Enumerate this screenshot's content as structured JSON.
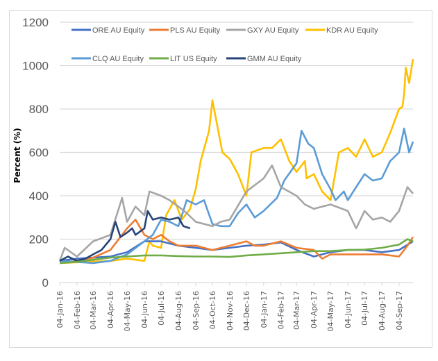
{
  "chart_data": {
    "type": "line",
    "title": "",
    "xlabel": "",
    "ylabel": "Percent (%)",
    "ylim": [
      0,
      1200
    ],
    "yticks": [
      0,
      200,
      400,
      600,
      800,
      1000,
      1200
    ],
    "xlim": [
      "2016-01-04",
      "2017-09-29"
    ],
    "xtick_labels": [
      "04-Jan-16",
      "04-Feb-16",
      "04-Mar-16",
      "04-Apr-16",
      "04-May-16",
      "04-Jun-16",
      "04-Jul-16",
      "04-Aug-16",
      "04-Sep-16",
      "04-Oct-16",
      "04-Nov-16",
      "04-Dec-16",
      "04-Jan-17",
      "04-Feb-17",
      "04-Mar-17",
      "04-Apr-17",
      "04-May-17",
      "04-Jun-17",
      "04-Jul-17",
      "04-Aug-17",
      "04-Sep-17"
    ],
    "xtick_dates": [
      "2016-01-04",
      "2016-02-04",
      "2016-03-04",
      "2016-04-04",
      "2016-05-04",
      "2016-06-04",
      "2016-07-04",
      "2016-08-04",
      "2016-09-04",
      "2016-10-04",
      "2016-11-04",
      "2016-12-04",
      "2017-01-04",
      "2017-02-04",
      "2017-03-04",
      "2017-04-04",
      "2017-05-04",
      "2017-06-04",
      "2017-07-04",
      "2017-08-04",
      "2017-09-04"
    ],
    "grid": "horizontal",
    "legend": "top",
    "series": [
      {
        "name": "ORE AU Equity",
        "color": "#4472C4",
        "points": [
          [
            "2016-01-04",
            100
          ],
          [
            "2016-02-04",
            110
          ],
          [
            "2016-03-04",
            115
          ],
          [
            "2016-04-04",
            120
          ],
          [
            "2016-05-04",
            140
          ],
          [
            "2016-06-04",
            190
          ],
          [
            "2016-07-04",
            190
          ],
          [
            "2016-08-04",
            170
          ],
          [
            "2016-09-04",
            160
          ],
          [
            "2016-10-04",
            150
          ],
          [
            "2016-11-04",
            160
          ],
          [
            "2016-12-04",
            170
          ],
          [
            "2017-01-04",
            175
          ],
          [
            "2017-02-04",
            185
          ],
          [
            "2017-03-04",
            150
          ],
          [
            "2017-04-04",
            120
          ],
          [
            "2017-05-04",
            140
          ],
          [
            "2017-06-04",
            150
          ],
          [
            "2017-07-04",
            150
          ],
          [
            "2017-08-04",
            140
          ],
          [
            "2017-09-04",
            150
          ],
          [
            "2017-09-29",
            190
          ]
        ]
      },
      {
        "name": "PLS AU Equity",
        "color": "#ED7D31",
        "points": [
          [
            "2016-01-04",
            90
          ],
          [
            "2016-02-04",
            100
          ],
          [
            "2016-03-04",
            115
          ],
          [
            "2016-04-04",
            150
          ],
          [
            "2016-05-04",
            250
          ],
          [
            "2016-05-19",
            290
          ],
          [
            "2016-06-04",
            220
          ],
          [
            "2016-06-19",
            200
          ],
          [
            "2016-07-04",
            220
          ],
          [
            "2016-07-19",
            190
          ],
          [
            "2016-08-04",
            170
          ],
          [
            "2016-09-04",
            170
          ],
          [
            "2016-10-04",
            150
          ],
          [
            "2016-11-04",
            170
          ],
          [
            "2016-12-04",
            190
          ],
          [
            "2016-12-19",
            170
          ],
          [
            "2017-01-04",
            170
          ],
          [
            "2017-02-04",
            190
          ],
          [
            "2017-03-04",
            160
          ],
          [
            "2017-04-04",
            150
          ],
          [
            "2017-04-19",
            110
          ],
          [
            "2017-05-04",
            130
          ],
          [
            "2017-06-04",
            130
          ],
          [
            "2017-07-04",
            130
          ],
          [
            "2017-08-04",
            130
          ],
          [
            "2017-09-04",
            120
          ],
          [
            "2017-09-19",
            170
          ],
          [
            "2017-09-29",
            210
          ]
        ]
      },
      {
        "name": "GXY AU Equity",
        "color": "#A5A5A5",
        "points": [
          [
            "2016-01-04",
            100
          ],
          [
            "2016-01-13",
            160
          ],
          [
            "2016-02-04",
            120
          ],
          [
            "2016-03-04",
            190
          ],
          [
            "2016-04-04",
            220
          ],
          [
            "2016-04-25",
            390
          ],
          [
            "2016-05-04",
            280
          ],
          [
            "2016-05-19",
            350
          ],
          [
            "2016-06-04",
            310
          ],
          [
            "2016-06-13",
            420
          ],
          [
            "2016-07-04",
            400
          ],
          [
            "2016-07-19",
            380
          ],
          [
            "2016-08-04",
            350
          ],
          [
            "2016-08-19",
            320
          ],
          [
            "2016-09-04",
            280
          ],
          [
            "2016-10-04",
            260
          ],
          [
            "2016-10-19",
            280
          ],
          [
            "2016-11-04",
            290
          ],
          [
            "2016-12-04",
            420
          ],
          [
            "2017-01-04",
            480
          ],
          [
            "2017-01-19",
            540
          ],
          [
            "2017-02-04",
            440
          ],
          [
            "2017-03-04",
            400
          ],
          [
            "2017-03-19",
            360
          ],
          [
            "2017-04-04",
            340
          ],
          [
            "2017-05-04",
            360
          ],
          [
            "2017-06-04",
            330
          ],
          [
            "2017-06-19",
            250
          ],
          [
            "2017-07-04",
            330
          ],
          [
            "2017-07-19",
            290
          ],
          [
            "2017-08-04",
            300
          ],
          [
            "2017-08-19",
            280
          ],
          [
            "2017-09-04",
            330
          ],
          [
            "2017-09-19",
            440
          ],
          [
            "2017-09-29",
            410
          ]
        ]
      },
      {
        "name": "KDR AU Equity",
        "color": "#FFC000",
        "points": [
          [
            "2016-01-04",
            90
          ],
          [
            "2016-04-04",
            100
          ],
          [
            "2016-05-04",
            110
          ],
          [
            "2016-06-04",
            100
          ],
          [
            "2016-06-13",
            190
          ],
          [
            "2016-06-19",
            170
          ],
          [
            "2016-07-04",
            160
          ],
          [
            "2016-07-13",
            310
          ],
          [
            "2016-07-28",
            380
          ],
          [
            "2016-08-10",
            290
          ],
          [
            "2016-08-25",
            340
          ],
          [
            "2016-09-04",
            430
          ],
          [
            "2016-09-13",
            560
          ],
          [
            "2016-09-28",
            700
          ],
          [
            "2016-10-04",
            840
          ],
          [
            "2016-10-10",
            760
          ],
          [
            "2016-10-22",
            600
          ],
          [
            "2016-11-04",
            570
          ],
          [
            "2016-11-19",
            500
          ],
          [
            "2016-12-04",
            400
          ],
          [
            "2016-12-13",
            600
          ],
          [
            "2017-01-04",
            620
          ],
          [
            "2017-01-19",
            620
          ],
          [
            "2017-02-04",
            660
          ],
          [
            "2017-02-19",
            560
          ],
          [
            "2017-03-04",
            510
          ],
          [
            "2017-03-19",
            560
          ],
          [
            "2017-03-22",
            480
          ],
          [
            "2017-04-04",
            500
          ],
          [
            "2017-04-19",
            420
          ],
          [
            "2017-05-04",
            380
          ],
          [
            "2017-05-19",
            600
          ],
          [
            "2017-06-04",
            620
          ],
          [
            "2017-06-19",
            580
          ],
          [
            "2017-07-04",
            660
          ],
          [
            "2017-07-19",
            580
          ],
          [
            "2017-08-04",
            600
          ],
          [
            "2017-08-19",
            690
          ],
          [
            "2017-09-04",
            800
          ],
          [
            "2017-09-10",
            810
          ],
          [
            "2017-09-13",
            870
          ],
          [
            "2017-09-16",
            990
          ],
          [
            "2017-09-22",
            920
          ],
          [
            "2017-09-29",
            1030
          ]
        ]
      },
      {
        "name": "CLQ AU Equity",
        "color": "#5B9BD5",
        "points": [
          [
            "2016-01-04",
            100
          ],
          [
            "2016-03-04",
            90
          ],
          [
            "2016-04-04",
            100
          ],
          [
            "2016-05-04",
            130
          ],
          [
            "2016-06-04",
            190
          ],
          [
            "2016-06-19",
            220
          ],
          [
            "2016-07-04",
            290
          ],
          [
            "2016-07-19",
            280
          ],
          [
            "2016-08-04",
            260
          ],
          [
            "2016-08-19",
            380
          ],
          [
            "2016-09-04",
            360
          ],
          [
            "2016-09-19",
            380
          ],
          [
            "2016-10-04",
            270
          ],
          [
            "2016-10-19",
            260
          ],
          [
            "2016-11-04",
            260
          ],
          [
            "2016-11-19",
            320
          ],
          [
            "2016-12-04",
            360
          ],
          [
            "2016-12-19",
            300
          ],
          [
            "2017-01-04",
            330
          ],
          [
            "2017-01-28",
            390
          ],
          [
            "2017-02-10",
            470
          ],
          [
            "2017-03-04",
            550
          ],
          [
            "2017-03-13",
            700
          ],
          [
            "2017-03-25",
            640
          ],
          [
            "2017-04-04",
            620
          ],
          [
            "2017-04-19",
            500
          ],
          [
            "2017-05-04",
            430
          ],
          [
            "2017-05-13",
            380
          ],
          [
            "2017-05-28",
            420
          ],
          [
            "2017-06-04",
            380
          ],
          [
            "2017-06-19",
            440
          ],
          [
            "2017-07-04",
            500
          ],
          [
            "2017-07-19",
            470
          ],
          [
            "2017-08-04",
            480
          ],
          [
            "2017-08-19",
            560
          ],
          [
            "2017-09-04",
            600
          ],
          [
            "2017-09-13",
            710
          ],
          [
            "2017-09-22",
            600
          ],
          [
            "2017-09-29",
            650
          ]
        ]
      },
      {
        "name": "LIT US Equity",
        "color": "#70AD47",
        "points": [
          [
            "2016-01-04",
            90
          ],
          [
            "2016-02-04",
            95
          ],
          [
            "2016-03-04",
            105
          ],
          [
            "2016-04-04",
            115
          ],
          [
            "2016-05-04",
            120
          ],
          [
            "2016-06-04",
            125
          ],
          [
            "2016-07-04",
            125
          ],
          [
            "2016-08-04",
            122
          ],
          [
            "2016-09-04",
            120
          ],
          [
            "2016-10-04",
            120
          ],
          [
            "2016-11-04",
            118
          ],
          [
            "2016-12-04",
            125
          ],
          [
            "2017-01-04",
            130
          ],
          [
            "2017-02-04",
            135
          ],
          [
            "2017-03-04",
            140
          ],
          [
            "2017-04-04",
            145
          ],
          [
            "2017-05-04",
            145
          ],
          [
            "2017-06-04",
            150
          ],
          [
            "2017-07-04",
            152
          ],
          [
            "2017-08-04",
            160
          ],
          [
            "2017-09-04",
            175
          ],
          [
            "2017-09-19",
            200
          ],
          [
            "2017-09-29",
            190
          ]
        ]
      },
      {
        "name": "GMM AU Equity",
        "color": "#264478",
        "points": [
          [
            "2016-01-04",
            100
          ],
          [
            "2016-01-19",
            120
          ],
          [
            "2016-02-04",
            100
          ],
          [
            "2016-02-19",
            110
          ],
          [
            "2016-03-04",
            130
          ],
          [
            "2016-03-19",
            150
          ],
          [
            "2016-04-04",
            200
          ],
          [
            "2016-04-13",
            280
          ],
          [
            "2016-04-22",
            210
          ],
          [
            "2016-05-04",
            230
          ],
          [
            "2016-05-13",
            250
          ],
          [
            "2016-05-19",
            220
          ],
          [
            "2016-06-04",
            250
          ],
          [
            "2016-06-10",
            330
          ],
          [
            "2016-06-19",
            290
          ],
          [
            "2016-07-04",
            300
          ],
          [
            "2016-07-19",
            290
          ],
          [
            "2016-08-04",
            300
          ],
          [
            "2016-08-13",
            260
          ],
          [
            "2016-08-25",
            250
          ]
        ]
      }
    ]
  }
}
